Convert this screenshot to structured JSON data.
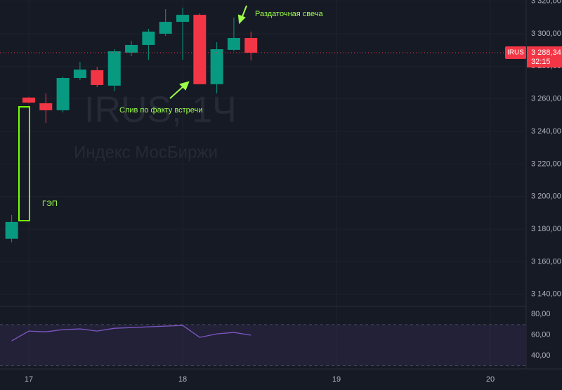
{
  "chart_data": [
    {
      "type": "candlestick",
      "watermark": [
        "IRUS, 1Ч",
        "Индекс МосБиржи"
      ],
      "symbol": "IRUS",
      "last": {
        "value": 3288.34,
        "label": "3 288,34"
      },
      "countdown": "32:15",
      "annotations": [
        "Раздаточная свеча",
        "Слив по факту встречи",
        "ГЭП"
      ],
      "up_color": "#089981",
      "down_color": "#f23645",
      "x": [
        16.889,
        17,
        17.111,
        17.222,
        17.333,
        17.444,
        17.556,
        17.667,
        17.778,
        17.889,
        18,
        18.111,
        18.222,
        18.333,
        18.444
      ],
      "open": [
        3174.1,
        3260.8,
        3257.3,
        3253.0,
        3272.8,
        3277.6,
        3268.1,
        3288.4,
        3293.1,
        3300.0,
        3307.3,
        3311.6,
        3269.0,
        3290.1,
        3297.4
      ],
      "high": [
        3188.7,
        3261.2,
        3263.3,
        3273.7,
        3282.7,
        3279.7,
        3290.5,
        3295.7,
        3303.0,
        3315.1,
        3316.0,
        3312.5,
        3294.8,
        3309.9,
        3301.3
      ],
      "low": [
        3171.9,
        3257.3,
        3245.2,
        3251.7,
        3271.5,
        3267.2,
        3264.6,
        3286.2,
        3284.0,
        3298.7,
        3284.0,
        3269.0,
        3263.3,
        3289.2,
        3283.6
      ],
      "close": [
        3184.4,
        3257.7,
        3253.0,
        3272.8,
        3278.0,
        3268.5,
        3289.2,
        3293.1,
        3301.3,
        3307.3,
        3311.6,
        3269.0,
        3290.5,
        3297.4,
        3288.34
      ],
      "xlim": [
        16.813,
        20.228
      ],
      "xticks": [
        17,
        18,
        19,
        20
      ],
      "ylim": [
        3133,
        3320.7
      ],
      "yticks": [
        {
          "value": 3140,
          "label": "3 140,00"
        },
        {
          "value": 3160,
          "label": "3 160,00"
        },
        {
          "value": 3180,
          "label": "3 180,00"
        },
        {
          "value": 3200,
          "label": "3 200,00"
        },
        {
          "value": 3220,
          "label": "3 220,00"
        },
        {
          "value": 3240,
          "label": "3 240,00"
        },
        {
          "value": 3260,
          "label": "3 260,00"
        },
        {
          "value": 3280,
          "label": "3 280,00"
        },
        {
          "value": 3300,
          "label": "3 300,00"
        },
        {
          "value": 3320,
          "label": "3 320,00"
        }
      ],
      "grid": true
    },
    {
      "type": "line",
      "color": "#7e57c2",
      "x": [
        16.889,
        17,
        17.111,
        17.222,
        17.333,
        17.444,
        17.556,
        17.667,
        17.778,
        17.889,
        18,
        18.111,
        18.222,
        18.333,
        18.444
      ],
      "values": [
        54.2,
        63.7,
        63.0,
        65.1,
        65.8,
        63.7,
        66.4,
        67.1,
        67.8,
        68.5,
        69.2,
        57.6,
        61.0,
        62.4,
        59.7
      ],
      "xlim": [
        16.813,
        20.228
      ],
      "ylim": [
        29,
        87
      ],
      "yticks": [
        {
          "value": 40,
          "label": "40,00"
        },
        {
          "value": 60,
          "label": "60,00"
        },
        {
          "value": 80,
          "label": "80,00"
        }
      ],
      "band": [
        30,
        70
      ]
    }
  ]
}
